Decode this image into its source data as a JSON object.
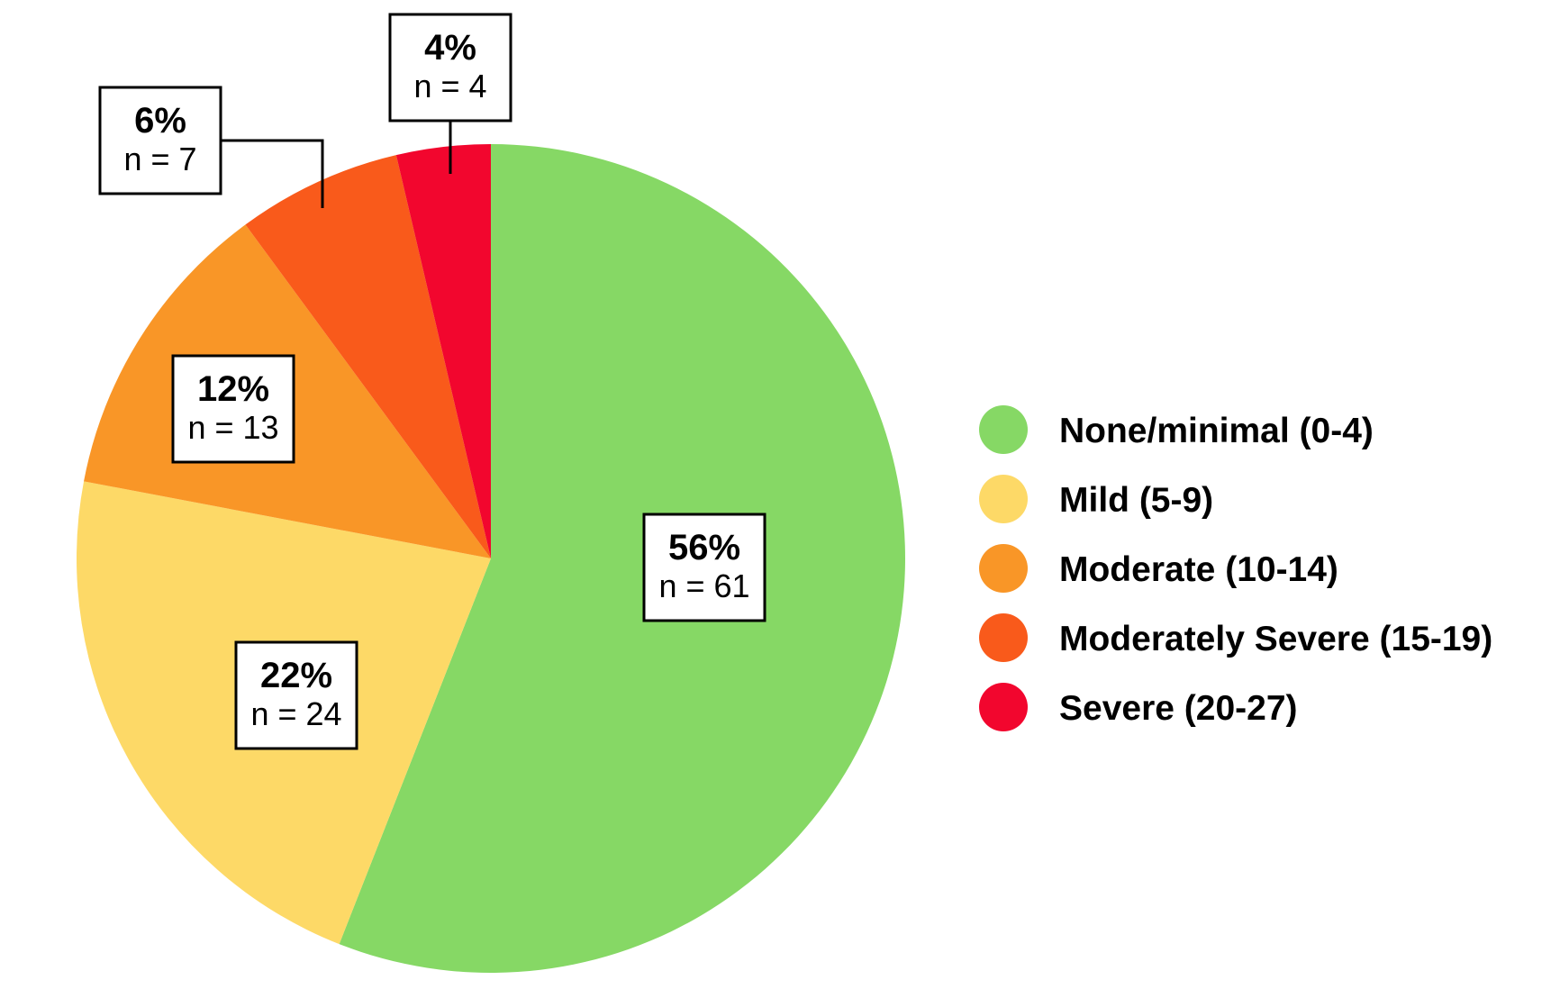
{
  "chart_data": {
    "type": "pie",
    "start_angle_deg": 0,
    "direction": "clockwise",
    "title": "",
    "legend_position": "right",
    "slices": [
      {
        "label": "None/minimal (0-4)",
        "pct_label": "56%",
        "n_label": "n = 61",
        "value": 61,
        "color": "#86D865"
      },
      {
        "label": "Mild (5-9)",
        "pct_label": "22%",
        "n_label": "n = 24",
        "value": 24,
        "color": "#FDD967"
      },
      {
        "label": "Moderate (10-14)",
        "pct_label": "12%",
        "n_label": "n = 13",
        "value": 13,
        "color": "#F99627"
      },
      {
        "label": "Moderately Severe (15-19)",
        "pct_label": "6%",
        "n_label": "n = 7",
        "value": 7,
        "color": "#F95A1B"
      },
      {
        "label": "Severe (20-27)",
        "pct_label": "4%",
        "n_label": "n = 4",
        "value": 4,
        "color": "#F2062E"
      }
    ]
  }
}
